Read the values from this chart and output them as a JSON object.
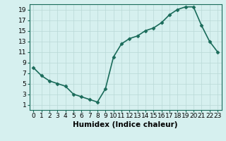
{
  "x": [
    0,
    1,
    2,
    3,
    4,
    5,
    6,
    7,
    8,
    9,
    10,
    11,
    12,
    13,
    14,
    15,
    16,
    17,
    18,
    19,
    20,
    21,
    22,
    23
  ],
  "y": [
    8,
    6.5,
    5.5,
    5,
    4.5,
    3,
    2.5,
    2,
    1.5,
    4,
    10,
    12.5,
    13.5,
    14,
    15,
    15.5,
    16.5,
    18,
    19,
    19.5,
    19.5,
    16,
    13,
    11
  ],
  "line_color": "#1a6b5a",
  "marker": "D",
  "marker_size": 2.5,
  "bg_color": "#d6f0ef",
  "grid_color": "#b8d8d6",
  "xlabel": "Humidex (Indice chaleur)",
  "xlim": [
    -0.5,
    23.5
  ],
  "ylim": [
    0,
    20
  ],
  "xticks": [
    0,
    1,
    2,
    3,
    4,
    5,
    6,
    7,
    8,
    9,
    10,
    11,
    12,
    13,
    14,
    15,
    16,
    17,
    18,
    19,
    20,
    21,
    22,
    23
  ],
  "yticks": [
    1,
    3,
    5,
    7,
    9,
    11,
    13,
    15,
    17,
    19
  ],
  "tick_fontsize": 6.5,
  "xlabel_fontsize": 7.5,
  "line_width": 1.2
}
